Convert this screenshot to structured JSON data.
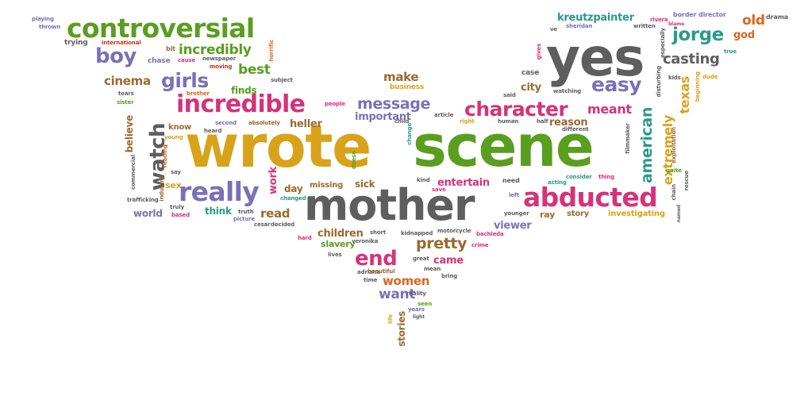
{
  "colors": {
    "green": "#5a9e1f",
    "purple": "#7a70b8",
    "pink": "#d6327a",
    "gray": "#5e5e5e",
    "gold": "#d9a21b",
    "teal": "#2a9a8a",
    "brown": "#9a6a2e",
    "orange": "#e0641e",
    "red": "#c8321e",
    "background": "#ffffff"
  },
  "words": [
    {
      "text": "wrote",
      "color": "gold"
    },
    {
      "text": "scene",
      "color": "green"
    },
    {
      "text": "mother",
      "color": "gray"
    },
    {
      "text": "yes",
      "color": "gray"
    },
    {
      "text": "abducted",
      "color": "pink"
    },
    {
      "text": "controversial",
      "color": "green"
    },
    {
      "text": "incredible",
      "color": "pink"
    },
    {
      "text": "character",
      "color": "pink"
    },
    {
      "text": "really",
      "color": "purple"
    },
    {
      "text": "watch",
      "color": "gray"
    },
    {
      "text": "end",
      "color": "pink"
    },
    {
      "text": "easy",
      "color": "purple"
    },
    {
      "text": "jorge",
      "color": "teal"
    },
    {
      "text": "girls",
      "color": "purple"
    },
    {
      "text": "boy",
      "color": "purple"
    },
    {
      "text": "message",
      "color": "purple"
    },
    {
      "text": "american",
      "color": "teal"
    },
    {
      "text": "extremely",
      "color": "gold"
    },
    {
      "text": "texas",
      "color": "gold"
    },
    {
      "text": "pretty",
      "color": "brown"
    },
    {
      "text": "incredibly",
      "color": "green"
    },
    {
      "text": "casting",
      "color": "gray"
    },
    {
      "text": "best",
      "color": "green"
    },
    {
      "text": "meant",
      "color": "pink"
    },
    {
      "text": "cinema",
      "color": "brown"
    },
    {
      "text": "make",
      "color": "brown"
    },
    {
      "text": "want",
      "color": "purple"
    },
    {
      "text": "women",
      "color": "orange"
    },
    {
      "text": "old",
      "color": "orange"
    },
    {
      "text": "stories",
      "color": "brown"
    },
    {
      "text": "kreutzpainter",
      "color": "teal"
    },
    {
      "text": "important",
      "color": "purple"
    },
    {
      "text": "heller",
      "color": "brown"
    },
    {
      "text": "reason",
      "color": "brown"
    },
    {
      "text": "entertain",
      "color": "pink"
    },
    {
      "text": "read",
      "color": "brown"
    },
    {
      "text": "work",
      "color": "pink"
    },
    {
      "text": "children",
      "color": "brown"
    },
    {
      "text": "came",
      "color": "pink"
    },
    {
      "text": "viewer",
      "color": "purple"
    },
    {
      "text": "city",
      "color": "brown"
    },
    {
      "text": "god",
      "color": "orange"
    },
    {
      "text": "day",
      "color": "brown"
    },
    {
      "text": "sick",
      "color": "brown"
    },
    {
      "text": "think",
      "color": "teal"
    },
    {
      "text": "world",
      "color": "purple"
    },
    {
      "text": "finds",
      "color": "green"
    },
    {
      "text": "believe",
      "color": "brown"
    },
    {
      "text": "sex",
      "color": "gold"
    },
    {
      "text": "know",
      "color": "brown"
    },
    {
      "text": "investigating",
      "color": "gold"
    },
    {
      "text": "slavery",
      "color": "green"
    },
    {
      "text": "missing",
      "color": "brown"
    },
    {
      "text": "ray",
      "color": "brown"
    },
    {
      "text": "story",
      "color": "brown"
    },
    {
      "text": "business",
      "color": "gold"
    },
    {
      "text": "case",
      "color": "gray"
    },
    {
      "text": "drama",
      "color": "gray"
    },
    {
      "text": "trying",
      "color": "gray"
    },
    {
      "text": "chase",
      "color": "purple"
    },
    {
      "text": "playing",
      "color": "purple"
    },
    {
      "text": "thrown",
      "color": "purple"
    },
    {
      "text": "international",
      "color": "red"
    },
    {
      "text": "bit",
      "color": "brown"
    },
    {
      "text": "cause",
      "color": "pink"
    },
    {
      "text": "newspaper",
      "color": "gray"
    },
    {
      "text": "moving",
      "color": "red"
    },
    {
      "text": "horrific",
      "color": "orange"
    },
    {
      "text": "subject",
      "color": "gray"
    },
    {
      "text": "people",
      "color": "pink"
    },
    {
      "text": "sister",
      "color": "green"
    },
    {
      "text": "tears",
      "color": "gray"
    },
    {
      "text": "brother",
      "color": "orange"
    },
    {
      "text": "heard",
      "color": "gray"
    },
    {
      "text": "second",
      "color": "purple"
    },
    {
      "text": "absolutely",
      "color": "brown"
    },
    {
      "text": "young",
      "color": "gold"
    },
    {
      "text": "reading",
      "color": "orange"
    },
    {
      "text": "commercial",
      "color": "gray"
    },
    {
      "text": "industry",
      "color": "brown"
    },
    {
      "text": "say",
      "color": "gray"
    },
    {
      "text": "trafficking",
      "color": "gray"
    },
    {
      "text": "truly",
      "color": "gray"
    },
    {
      "text": "based",
      "color": "pink"
    },
    {
      "text": "truth",
      "color": "gray"
    },
    {
      "text": "picture",
      "color": "purple"
    },
    {
      "text": "changed",
      "color": "teal"
    },
    {
      "text": "cesar",
      "color": "gray"
    },
    {
      "text": "decided",
      "color": "gray"
    },
    {
      "text": "hard",
      "color": "pink"
    },
    {
      "text": "veronika",
      "color": "gray"
    },
    {
      "text": "lives",
      "color": "gray"
    },
    {
      "text": "adriana",
      "color": "gray"
    },
    {
      "text": "time",
      "color": "gray"
    },
    {
      "text": "life",
      "color": "gold"
    },
    {
      "text": "seen",
      "color": "green"
    },
    {
      "text": "years",
      "color": "purple"
    },
    {
      "text": "light",
      "color": "gray"
    },
    {
      "text": "short",
      "color": "gray"
    },
    {
      "text": "kidnapped",
      "color": "gray"
    },
    {
      "text": "motorcycle",
      "color": "gray"
    },
    {
      "text": "bachleda",
      "color": "pink"
    },
    {
      "text": "crime",
      "color": "pink"
    },
    {
      "text": "great",
      "color": "gray"
    },
    {
      "text": "mean",
      "color": "gray"
    },
    {
      "text": "bring",
      "color": "gray"
    },
    {
      "text": "reality",
      "color": "gray"
    },
    {
      "text": "beautiful",
      "color": "brown"
    },
    {
      "text": "save",
      "color": "pink"
    },
    {
      "text": "acting",
      "color": "teal"
    },
    {
      "text": "left",
      "color": "purple"
    },
    {
      "text": "younger",
      "color": "gray"
    },
    {
      "text": "kind",
      "color": "gray"
    },
    {
      "text": "need",
      "color": "gray"
    },
    {
      "text": "consider",
      "color": "teal"
    },
    {
      "text": "thing",
      "color": "pink"
    },
    {
      "text": "chain",
      "color": "gray"
    },
    {
      "text": "named",
      "color": "gray"
    },
    {
      "text": "quite",
      "color": "green"
    },
    {
      "text": "exploitation",
      "color": "brown"
    },
    {
      "text": "filmmaker",
      "color": "gray"
    },
    {
      "text": "disturbing",
      "color": "gray"
    },
    {
      "text": "different",
      "color": "gray"
    },
    {
      "text": "half",
      "color": "gray"
    },
    {
      "text": "human",
      "color": "gray"
    },
    {
      "text": "said",
      "color": "gray"
    },
    {
      "text": "watching",
      "color": "gray"
    },
    {
      "text": "gives",
      "color": "pink"
    },
    {
      "text": "ve",
      "color": "gray"
    },
    {
      "text": "sheridan",
      "color": "purple"
    },
    {
      "text": "written",
      "color": "gray"
    },
    {
      "text": "rivera",
      "color": "pink"
    },
    {
      "text": "border",
      "color": "purple"
    },
    {
      "text": "director",
      "color": "purple"
    },
    {
      "text": "especially",
      "color": "gray"
    },
    {
      "text": "blame",
      "color": "pink"
    },
    {
      "text": "true",
      "color": "teal"
    },
    {
      "text": "beginning",
      "color": "gold"
    },
    {
      "text": "dude",
      "color": "gold"
    },
    {
      "text": "kids",
      "color": "gray"
    },
    {
      "text": "doesn",
      "color": "green"
    },
    {
      "text": "child",
      "color": "gray"
    },
    {
      "text": "article",
      "color": "gray"
    },
    {
      "text": "right",
      "color": "gold"
    },
    {
      "text": "change",
      "color": "teal"
    },
    {
      "text": "rescue",
      "color": "gray"
    }
  ]
}
